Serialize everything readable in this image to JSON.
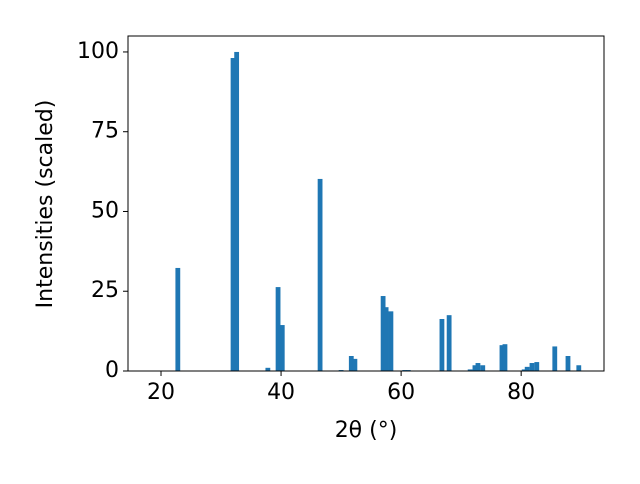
{
  "chart_data": {
    "type": "bar",
    "x": [
      22.8,
      32.0,
      32.6,
      37.8,
      39.5,
      40.2,
      46.5,
      50.0,
      51.7,
      52.3,
      57.0,
      57.5,
      58.3,
      60.6,
      61.2,
      66.8,
      68.0,
      71.5,
      72.3,
      72.8,
      73.6,
      76.8,
      77.3,
      80.5,
      81.0,
      81.8,
      82.6,
      85.6,
      87.8,
      89.6
    ],
    "values": [
      32.3,
      98.1,
      100,
      1,
      26.3,
      14.4,
      60.2,
      0.3,
      4.7,
      3.8,
      23.5,
      20,
      18.7,
      0.3,
      0.3,
      16.3,
      17.5,
      0.5,
      1.8,
      2.5,
      1.8,
      8.1,
      8.4,
      0.5,
      1.3,
      2.5,
      2.8,
      7.7,
      4.7,
      1.8
    ],
    "color": "#1f77b4",
    "xlabel": "2θ (°)",
    "ylabel": "Intensities (scaled)",
    "xlim": [
      14.5,
      93.8
    ],
    "ylim": [
      0,
      105
    ],
    "xticks": [
      20,
      40,
      60,
      80
    ],
    "yticks": [
      0,
      25,
      50,
      75,
      100
    ]
  }
}
